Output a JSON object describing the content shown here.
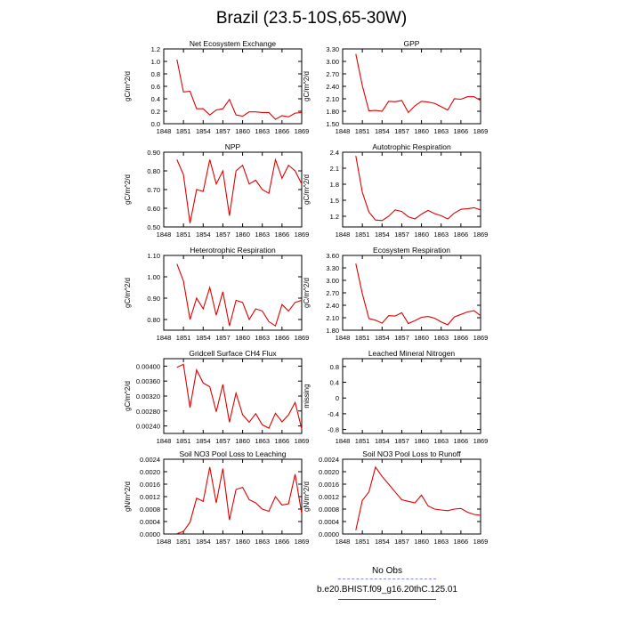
{
  "page_title": "Brazil (23.5-10S,65-30W)",
  "legend": {
    "obs_label": "No Obs",
    "run_label": "b.e20.BHIST.f09_g16.20thC.125.01",
    "obs_color": "#8888ee",
    "run_color": "#e00000"
  },
  "chart_data": [
    {
      "type": "line",
      "title": "Net Ecosystem Exchange",
      "ylabel": "gC/m^2/d",
      "xlim": [
        1848,
        1869
      ],
      "ylim": [
        0.0,
        1.2
      ],
      "yticks": [
        0.0,
        0.2,
        0.4,
        0.6,
        0.8,
        1.0,
        1.2
      ],
      "ytick_labels": [
        "0.0",
        "0.2",
        "0.4",
        "0.6",
        "0.8",
        "1.0",
        "1.2"
      ],
      "xticks": [
        1848,
        1851,
        1854,
        1857,
        1860,
        1863,
        1866,
        1869
      ],
      "x": [
        1850,
        1851,
        1852,
        1853,
        1854,
        1855,
        1856,
        1857,
        1858,
        1859,
        1860,
        1861,
        1862,
        1863,
        1864,
        1865,
        1866,
        1867,
        1868,
        1869
      ],
      "series": [
        {
          "values": [
            1.03,
            0.51,
            0.52,
            0.24,
            0.24,
            0.14,
            0.22,
            0.24,
            0.39,
            0.14,
            0.12,
            0.19,
            0.19,
            0.18,
            0.18,
            0.07,
            0.13,
            0.11,
            0.17,
            0.18
          ]
        }
      ]
    },
    {
      "type": "line",
      "title": "GPP",
      "ylabel": "gC/m^2/d",
      "xlim": [
        1848,
        1869
      ],
      "ylim": [
        1.5,
        3.3
      ],
      "yticks": [
        1.5,
        1.8,
        2.1,
        2.4,
        2.7,
        3.0,
        3.3
      ],
      "ytick_labels": [
        "1.50",
        "1.80",
        "2.10",
        "2.40",
        "2.70",
        "3.00",
        "3.30"
      ],
      "xticks": [
        1848,
        1851,
        1854,
        1857,
        1860,
        1863,
        1866,
        1869
      ],
      "x": [
        1850,
        1851,
        1852,
        1853,
        1854,
        1855,
        1856,
        1857,
        1858,
        1859,
        1860,
        1861,
        1862,
        1863,
        1864,
        1865,
        1866,
        1867,
        1868,
        1869
      ],
      "series": [
        {
          "values": [
            3.18,
            2.42,
            1.81,
            1.82,
            1.8,
            2.04,
            2.03,
            2.06,
            1.77,
            1.93,
            2.04,
            2.02,
            1.99,
            1.91,
            1.83,
            2.1,
            2.09,
            2.15,
            2.15,
            2.06
          ]
        }
      ]
    },
    {
      "type": "line",
      "title": "NPP",
      "ylabel": "gC/m^2/d",
      "xlim": [
        1848,
        1869
      ],
      "ylim": [
        0.5,
        0.9
      ],
      "yticks": [
        0.5,
        0.6,
        0.7,
        0.8,
        0.9
      ],
      "ytick_labels": [
        "0.50",
        "0.60",
        "0.70",
        "0.80",
        "0.90"
      ],
      "xticks": [
        1848,
        1851,
        1854,
        1857,
        1860,
        1863,
        1866,
        1869
      ],
      "x": [
        1850,
        1851,
        1852,
        1853,
        1854,
        1855,
        1856,
        1857,
        1858,
        1859,
        1860,
        1861,
        1862,
        1863,
        1864,
        1865,
        1866,
        1867,
        1868,
        1869
      ],
      "series": [
        {
          "values": [
            0.86,
            0.78,
            0.52,
            0.7,
            0.69,
            0.86,
            0.73,
            0.8,
            0.56,
            0.8,
            0.83,
            0.73,
            0.75,
            0.7,
            0.68,
            0.86,
            0.76,
            0.83,
            0.8,
            0.73
          ]
        }
      ]
    },
    {
      "type": "line",
      "title": "Autotrophic Respiration",
      "ylabel": "gC/m^2/d",
      "xlim": [
        1848,
        1869
      ],
      "ylim": [
        1.0,
        2.4
      ],
      "yticks": [
        1.2,
        1.5,
        1.8,
        2.1,
        2.4
      ],
      "ytick_labels": [
        "1.2",
        "1.5",
        "1.8",
        "2.1",
        "2.4"
      ],
      "xticks": [
        1848,
        1851,
        1854,
        1857,
        1860,
        1863,
        1866,
        1869
      ],
      "x": [
        1850,
        1851,
        1852,
        1853,
        1854,
        1855,
        1856,
        1857,
        1858,
        1859,
        1860,
        1861,
        1862,
        1863,
        1864,
        1865,
        1866,
        1867,
        1868,
        1869
      ],
      "series": [
        {
          "values": [
            2.33,
            1.65,
            1.28,
            1.13,
            1.12,
            1.2,
            1.32,
            1.29,
            1.19,
            1.15,
            1.24,
            1.31,
            1.25,
            1.21,
            1.15,
            1.26,
            1.33,
            1.34,
            1.36,
            1.32
          ]
        }
      ]
    },
    {
      "type": "line",
      "title": "Heterotrophic Respiration",
      "ylabel": "gC/m^2/d",
      "xlim": [
        1848,
        1869
      ],
      "ylim": [
        0.75,
        1.1
      ],
      "yticks": [
        0.8,
        0.9,
        1.0,
        1.1
      ],
      "ytick_labels": [
        "0.80",
        "0.90",
        "1.00",
        "1.10"
      ],
      "xticks": [
        1848,
        1851,
        1854,
        1857,
        1860,
        1863,
        1866,
        1869
      ],
      "x": [
        1850,
        1851,
        1852,
        1853,
        1854,
        1855,
        1856,
        1857,
        1858,
        1859,
        1860,
        1861,
        1862,
        1863,
        1864,
        1865,
        1866,
        1867,
        1868,
        1869
      ],
      "series": [
        {
          "values": [
            1.06,
            0.98,
            0.8,
            0.9,
            0.85,
            0.95,
            0.82,
            0.93,
            0.77,
            0.89,
            0.88,
            0.8,
            0.85,
            0.84,
            0.79,
            0.77,
            0.87,
            0.84,
            0.88,
            0.89
          ]
        }
      ]
    },
    {
      "type": "line",
      "title": "Ecosystem Respiration",
      "ylabel": "gC/m^2/d",
      "xlim": [
        1848,
        1869
      ],
      "ylim": [
        1.8,
        3.6
      ],
      "yticks": [
        1.8,
        2.1,
        2.4,
        2.7,
        3.0,
        3.3,
        3.6
      ],
      "ytick_labels": [
        "1.80",
        "2.10",
        "2.40",
        "2.70",
        "3.00",
        "3.30",
        "3.60"
      ],
      "xticks": [
        1848,
        1851,
        1854,
        1857,
        1860,
        1863,
        1866,
        1869
      ],
      "x": [
        1850,
        1851,
        1852,
        1853,
        1854,
        1855,
        1856,
        1857,
        1858,
        1859,
        1860,
        1861,
        1862,
        1863,
        1864,
        1865,
        1866,
        1867,
        1868,
        1869
      ],
      "series": [
        {
          "values": [
            3.4,
            2.68,
            2.08,
            2.04,
            1.97,
            2.15,
            2.14,
            2.22,
            1.96,
            2.03,
            2.11,
            2.13,
            2.09,
            2.0,
            1.93,
            2.12,
            2.18,
            2.24,
            2.27,
            2.15
          ]
        }
      ]
    },
    {
      "type": "line",
      "title": "Gridcell Surface CH4 Flux",
      "ylabel": "gC/m^2/d",
      "xlim": [
        1848,
        1869
      ],
      "ylim": [
        0.0022,
        0.0042
      ],
      "yticks": [
        0.0024,
        0.0028,
        0.0032,
        0.0036,
        0.004
      ],
      "ytick_labels": [
        "0.00240",
        "0.00280",
        "0.00320",
        "0.00360",
        "0.00400"
      ],
      "xticks": [
        1848,
        1851,
        1854,
        1857,
        1860,
        1863,
        1866,
        1869
      ],
      "x": [
        1850,
        1851,
        1852,
        1853,
        1854,
        1855,
        1856,
        1857,
        1858,
        1859,
        1860,
        1861,
        1862,
        1863,
        1864,
        1865,
        1866,
        1867,
        1868,
        1869
      ],
      "series": [
        {
          "values": [
            0.00397,
            0.00405,
            0.00289,
            0.0039,
            0.00355,
            0.00345,
            0.00278,
            0.00351,
            0.0025,
            0.00328,
            0.0027,
            0.0025,
            0.00273,
            0.00243,
            0.00234,
            0.00274,
            0.00251,
            0.0027,
            0.00303,
            0.00232
          ]
        }
      ]
    },
    {
      "type": "line",
      "title": "Leached Mineral Nitrogen",
      "ylabel": "missing",
      "xlim": [
        1848,
        1869
      ],
      "ylim": [
        -0.9,
        1.0
      ],
      "yticks": [
        -0.8,
        -0.4,
        0.0,
        0.4,
        0.8
      ],
      "ytick_labels": [
        "-0.8",
        "-0.4",
        "0",
        "0.4",
        "0.8"
      ],
      "xticks": [
        1848,
        1851,
        1854,
        1857,
        1860,
        1863,
        1866,
        1869
      ],
      "x": [],
      "series": [
        {
          "values": []
        }
      ]
    },
    {
      "type": "line",
      "title": "Soil NO3 Pool Loss to Leaching",
      "ylabel": "gN/m^2/d",
      "xlim": [
        1848,
        1869
      ],
      "ylim": [
        0.0,
        0.0024
      ],
      "yticks": [
        0.0,
        0.0004,
        0.0008,
        0.0012,
        0.0016,
        0.002,
        0.0024
      ],
      "ytick_labels": [
        "0.0000",
        "0.0004",
        "0.0008",
        "0.0012",
        "0.0016",
        "0.0020",
        "0.0024"
      ],
      "xticks": [
        1848,
        1851,
        1854,
        1857,
        1860,
        1863,
        1866,
        1869
      ],
      "x": [
        1850,
        1851,
        1852,
        1853,
        1854,
        1855,
        1856,
        1857,
        1858,
        1859,
        1860,
        1861,
        1862,
        1863,
        1864,
        1865,
        1866,
        1867,
        1868,
        1869
      ],
      "series": [
        {
          "values": [
            1e-05,
            8e-05,
            0.00038,
            0.00115,
            0.00105,
            0.00215,
            0.001,
            0.0021,
            0.00045,
            0.00143,
            0.0015,
            0.0011,
            0.001,
            0.0008,
            0.00073,
            0.0012,
            0.00093,
            0.00097,
            0.00192,
            0.00065
          ]
        }
      ]
    },
    {
      "type": "line",
      "title": "Soil NO3 Pool Loss to Runoff",
      "ylabel": "gN/m^2/d",
      "xlim": [
        1848,
        1869
      ],
      "ylim": [
        0.0,
        0.0024
      ],
      "yticks": [
        0.0,
        0.0004,
        0.0008,
        0.0012,
        0.0016,
        0.002,
        0.0024
      ],
      "ytick_labels": [
        "0.0000",
        "0.0004",
        "0.0008",
        "0.0012",
        "0.0016",
        "0.0020",
        "0.0024"
      ],
      "xticks": [
        1848,
        1851,
        1854,
        1857,
        1860,
        1863,
        1866,
        1869
      ],
      "x": [
        1850,
        1851,
        1852,
        1853,
        1854,
        1855,
        1856,
        1857,
        1858,
        1859,
        1860,
        1861,
        1862,
        1863,
        1864,
        1865,
        1866,
        1867,
        1868,
        1869
      ],
      "series": [
        {
          "values": [
            0.00012,
            0.00108,
            0.00135,
            0.00215,
            0.00185,
            0.0016,
            0.00135,
            0.0011,
            0.00105,
            0.001,
            0.00125,
            0.0009,
            0.0008,
            0.00077,
            0.00075,
            0.0008,
            0.00082,
            0.0007,
            0.00063,
            0.0006
          ]
        }
      ]
    }
  ]
}
